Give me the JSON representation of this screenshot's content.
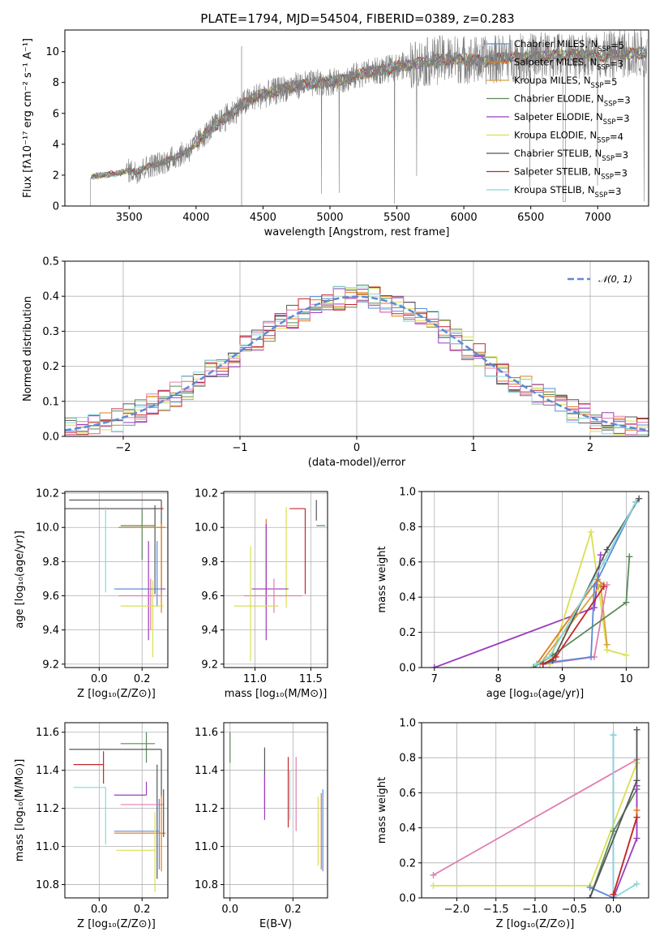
{
  "figure_title": "PLATE=1794, MJD=54504, FIBERID=0389, z=0.283",
  "colors": {
    "Chabrier MILES": "#5b8bd6",
    "Salpeter MILES": "#e07b1d",
    "Kroupa MILES": "#dba33a",
    "Chabrier ELODIE": "#5a8a5a",
    "Salpeter ELODIE": "#9b3bbf",
    "Kroupa ELODIE": "#d8e050",
    "Chabrier STELIB": "#555555",
    "Salpeter STELIB": "#c0282a",
    "Kroupa STELIB": "#87d8d8",
    "pink": "#e07db0",
    "gaussian": "#5b8bd6",
    "data": "#7f7f7f"
  },
  "chart_data": [
    {
      "id": "spectrum",
      "type": "line",
      "title": "PLATE=1794, MJD=54504, FIBERID=0389, z=0.283",
      "xlabel": "wavelength [Angstrom, rest frame]",
      "ylabel": "Flux [fλ10⁻¹⁷ erg cm⁻² s⁻¹ A⁻¹]",
      "xlim": [
        3020,
        7380
      ],
      "ylim": [
        0,
        11.4
      ],
      "xticks": [
        "3500",
        "4000",
        "4500",
        "5000",
        "5500",
        "6000",
        "6500",
        "7000"
      ],
      "xtick_values": [
        3500,
        4000,
        4500,
        5000,
        5500,
        6000,
        6500,
        7000
      ],
      "yticks": [
        "0",
        "2",
        "4",
        "6",
        "8",
        "10"
      ],
      "ytick_values": [
        0,
        2,
        4,
        6,
        8,
        10
      ],
      "legend_placement": "right",
      "legend": [
        {
          "name": "Chabrier MILES, N_SSP=5",
          "main": "Chabrier MILES, N",
          "sub": "SSP",
          "tail": "=5",
          "color": "#5b8bd6"
        },
        {
          "name": "Salpeter MILES, N_SSP=3",
          "main": "Salpeter MILES, N",
          "sub": "SSP",
          "tail": "=3",
          "color": "#e07b1d"
        },
        {
          "name": "Kroupa MILES, N_SSP=5",
          "main": "Kroupa MILES, N",
          "sub": "SSP",
          "tail": "=5",
          "color": "#dba33a"
        },
        {
          "name": "Chabrier ELODIE, N_SSP=3",
          "main": "Chabrier ELODIE, N",
          "sub": "SSP",
          "tail": "=3",
          "color": "#5a8a5a"
        },
        {
          "name": "Salpeter ELODIE, N_SSP=3",
          "main": "Salpeter ELODIE, N",
          "sub": "SSP",
          "tail": "=3",
          "color": "#9b3bbf"
        },
        {
          "name": "Kroupa ELODIE, N_SSP=4",
          "main": "Kroupa ELODIE, N",
          "sub": "SSP",
          "tail": "=4",
          "color": "#d8e050"
        },
        {
          "name": "Chabrier STELIB, N_SSP=3",
          "main": "Chabrier STELIB, N",
          "sub": "SSP",
          "tail": "=3",
          "color": "#555555"
        },
        {
          "name": "Salpeter STELIB, N_SSP=3",
          "main": "Salpeter STELIB, N",
          "sub": "SSP",
          "tail": "=3",
          "color": "#c0282a"
        },
        {
          "name": "Kroupa STELIB, N_SSP=3",
          "main": "Kroupa STELIB, N",
          "sub": "SSP",
          "tail": "=3",
          "color": "#87d8d8"
        }
      ],
      "continuum_x": [
        3210,
        3300,
        3400,
        3500,
        3550,
        3650,
        3750,
        3850,
        3950,
        4050,
        4150,
        4250,
        4350,
        4450,
        4550,
        4650,
        4750,
        4850,
        4950,
        5050,
        5150,
        5250,
        5400,
        5550,
        5700,
        5850,
        6000,
        6150,
        6300,
        6450,
        6600,
        6750,
        6900,
        7050,
        7200,
        7350
      ],
      "continuum_y": [
        1.9,
        2.0,
        2.1,
        2.3,
        2.2,
        2.6,
        2.8,
        3.2,
        3.6,
        4.5,
        5.3,
        5.9,
        6.6,
        7.1,
        7.3,
        7.6,
        7.8,
        7.9,
        8.0,
        8.1,
        8.3,
        8.6,
        8.8,
        9.1,
        9.3,
        9.5,
        9.5,
        9.4,
        9.6,
        9.6,
        9.7,
        9.8,
        9.8,
        9.7,
        9.9,
        9.9
      ]
    },
    {
      "id": "residuals",
      "type": "bar",
      "xlabel": "(data-model)/error",
      "ylabel": "Normed distribution",
      "xlim": [
        -2.5,
        2.5
      ],
      "ylim": [
        0,
        0.5
      ],
      "xticks": [
        "−2",
        "−1",
        "0",
        "1",
        "2"
      ],
      "xtick_values": [
        -2,
        -1,
        0,
        1,
        2
      ],
      "yticks": [
        "0.0",
        "0.1",
        "0.2",
        "0.3",
        "0.4",
        "0.5"
      ],
      "ytick_values": [
        0,
        0.1,
        0.2,
        0.3,
        0.4,
        0.5
      ],
      "legend_label": "𝒩(0, 1)",
      "legend_placement": "top-right",
      "bins": 50,
      "bin_range": [
        -2.5,
        2.5
      ]
    },
    {
      "id": "age-vs-Z",
      "type": "scatter",
      "xlabel": "Z [log₁₀(Z/Z⊙)]",
      "ylabel": "age  [log₁₀(age/yr)]",
      "xlim": [
        -0.16,
        0.32
      ],
      "ylim": [
        9.18,
        10.21
      ],
      "xticks": [
        "0.0",
        "0.2"
      ],
      "xtick_values": [
        0.0,
        0.2
      ],
      "yticks": [
        "9.2",
        "9.4",
        "9.6",
        "9.8",
        "10.0",
        "10.2"
      ],
      "ytick_values": [
        9.2,
        9.4,
        9.6,
        9.8,
        10.0,
        10.2
      ]
    },
    {
      "id": "age-vs-mass",
      "type": "scatter",
      "xlabel": "mass [log₁₀(M/M⊙)]",
      "xlim": [
        10.72,
        11.65
      ],
      "ylim": [
        9.18,
        10.21
      ],
      "xticks": [
        "11.0",
        "11.5"
      ],
      "xtick_values": [
        11.0,
        11.5
      ],
      "yticks": [
        "9.2",
        "9.4",
        "9.6",
        "9.8",
        "10.0",
        "10.2"
      ],
      "ytick_values": [
        9.2,
        9.4,
        9.6,
        9.8,
        10.0,
        10.2
      ]
    },
    {
      "id": "weight-vs-age",
      "type": "line",
      "xlabel": "age  [log₁₀(age/yr)]",
      "ylabel": "mass weight",
      "xlim": [
        6.8,
        10.35
      ],
      "ylim": [
        0,
        1.0
      ],
      "xticks": [
        "7",
        "8",
        "9",
        "10"
      ],
      "xtick_values": [
        7,
        8,
        9,
        10
      ],
      "yticks": [
        "0.0",
        "0.2",
        "0.4",
        "0.6",
        "0.8",
        "1.0"
      ],
      "ytick_values": [
        0,
        0.2,
        0.4,
        0.6,
        0.8,
        1.0
      ],
      "series": [
        {
          "color": "#9b3bbf",
          "x": [
            7.0,
            9.5,
            9.6
          ],
          "y": [
            0.0,
            0.34,
            0.64
          ]
        },
        {
          "color": "#d8e050",
          "x": [
            8.8,
            9.45,
            9.7,
            10.0
          ],
          "y": [
            0.02,
            0.77,
            0.1,
            0.07
          ]
        },
        {
          "color": "#e07b1d",
          "x": [
            8.6,
            9.55,
            9.65
          ],
          "y": [
            0.02,
            0.5,
            0.47
          ]
        },
        {
          "color": "#dba33a",
          "x": [
            8.65,
            9.6,
            9.7
          ],
          "y": [
            0.02,
            0.47,
            0.13
          ]
        },
        {
          "color": "#e07db0",
          "x": [
            8.7,
            9.5,
            9.7
          ],
          "y": [
            0.02,
            0.06,
            0.47
          ]
        },
        {
          "color": "#5b8bd6",
          "x": [
            8.6,
            9.45,
            9.5,
            10.15
          ],
          "y": [
            0.02,
            0.06,
            0.46,
            0.94
          ]
        },
        {
          "color": "#5a8a5a",
          "x": [
            8.55,
            8.85,
            10.0,
            10.05
          ],
          "y": [
            0.0,
            0.07,
            0.37,
            0.63
          ]
        },
        {
          "color": "#555555",
          "x": [
            8.7,
            8.85,
            9.7,
            10.2
          ],
          "y": [
            0.02,
            0.04,
            0.67,
            0.96
          ]
        },
        {
          "color": "#87d8d8",
          "x": [
            8.6,
            8.8,
            9.65,
            10.15
          ],
          "y": [
            0.02,
            0.06,
            0.6,
            0.94
          ]
        },
        {
          "color": "#c0282a",
          "x": [
            8.7,
            8.9,
            9.65
          ],
          "y": [
            0.02,
            0.06,
            0.46
          ]
        }
      ]
    },
    {
      "id": "mass-vs-Z",
      "type": "scatter",
      "xlabel": "Z [log₁₀(Z/Z⊙)]",
      "ylabel": "mass [log₁₀(M/M⊙)]",
      "xlim": [
        -0.16,
        0.32
      ],
      "ylim": [
        10.73,
        11.65
      ],
      "xticks": [
        "0.0",
        "0.2"
      ],
      "xtick_values": [
        0.0,
        0.2
      ],
      "yticks": [
        "10.8",
        "11.0",
        "11.2",
        "11.4",
        "11.6"
      ],
      "ytick_values": [
        10.8,
        11.0,
        11.2,
        11.4,
        11.6
      ]
    },
    {
      "id": "mass-vs-ebv",
      "type": "scatter",
      "xlabel": "E(B-V)",
      "xlim": [
        -0.02,
        0.31
      ],
      "ylim": [
        10.73,
        11.65
      ],
      "xticks": [
        "0.0",
        "0.2"
      ],
      "xtick_values": [
        0.0,
        0.2
      ],
      "yticks": [
        "10.8",
        "11.0",
        "11.2",
        "11.4",
        "11.6"
      ],
      "ytick_values": [
        10.8,
        11.0,
        11.2,
        11.4,
        11.6
      ]
    },
    {
      "id": "weight-vs-Z",
      "type": "line",
      "xlabel": "Z [log₁₀(Z/Z⊙)]",
      "ylabel": "mass weight",
      "xlim": [
        -2.45,
        0.45
      ],
      "ylim": [
        0,
        1.0
      ],
      "xticks": [
        "−2.0",
        "−1.5",
        "−1.0",
        "−0.5",
        "0.0"
      ],
      "xtick_values": [
        -2.0,
        -1.5,
        -1.0,
        -0.5,
        0.0
      ],
      "yticks": [
        "0.0",
        "0.2",
        "0.4",
        "0.6",
        "0.8",
        "1.0"
      ],
      "ytick_values": [
        0,
        0.2,
        0.4,
        0.6,
        0.8,
        1.0
      ],
      "series": [
        {
          "color": "#e07db0",
          "x": [
            -2.3,
            0.3
          ],
          "y": [
            0.13,
            0.79
          ]
        },
        {
          "color": "#d8e050",
          "x": [
            -2.3,
            -0.3,
            0.3
          ],
          "y": [
            0.07,
            0.07,
            0.77
          ]
        },
        {
          "color": "#5b8bd6",
          "x": [
            -0.3,
            0.0,
            0.0
          ],
          "y": [
            0.06,
            0.0,
            0.93
          ]
        },
        {
          "color": "#87d8d8",
          "x": [
            0.0,
            0.0,
            0.3
          ],
          "y": [
            0.93,
            0.0,
            0.08
          ]
        },
        {
          "color": "#5a8a5a",
          "x": [
            -0.3,
            0.0,
            0.3
          ],
          "y": [
            0.0,
            0.38,
            0.62
          ]
        },
        {
          "color": "#555555",
          "x": [
            -0.3,
            0.3,
            0.3
          ],
          "y": [
            0.0,
            0.67,
            0.96
          ]
        },
        {
          "color": "#9b3bbf",
          "x": [
            0.0,
            0.3,
            0.3
          ],
          "y": [
            0.0,
            0.34,
            0.64
          ]
        },
        {
          "color": "#e07b1d",
          "x": [
            0.0,
            0.3,
            0.3
          ],
          "y": [
            0.02,
            0.46,
            0.5
          ]
        },
        {
          "color": "#c0282a",
          "x": [
            0.0,
            0.3
          ],
          "y": [
            0.02,
            0.46
          ]
        }
      ]
    }
  ]
}
